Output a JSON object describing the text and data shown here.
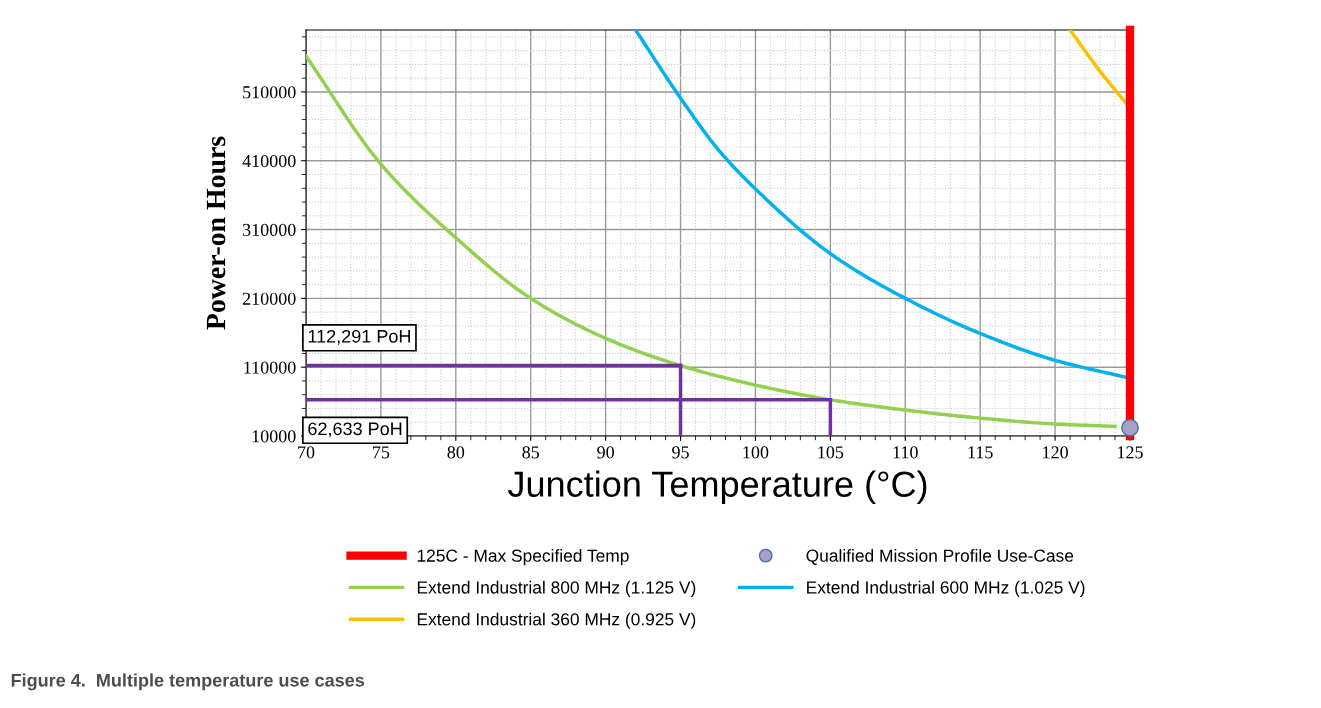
{
  "chart_data": {
    "type": "line",
    "xlabel": "Junction Temperature (°C)",
    "ylabel": "Power-on Hours",
    "xlim": [
      70,
      125
    ],
    "xticks": [
      70,
      75,
      80,
      85,
      90,
      95,
      100,
      105,
      110,
      115,
      120,
      125
    ],
    "ylim": [
      10000,
      600000
    ],
    "yticks": [
      10000,
      110000,
      210000,
      310000,
      410000,
      510000
    ],
    "grid": true,
    "legend": "bottom",
    "ref_lines": [
      {
        "axis": "x",
        "value": 125,
        "label": "125C - Max Specified Temp",
        "color": "#ff0000"
      }
    ],
    "series": [
      {
        "name": "Qualified Mission Profile Use-Case",
        "type": "scatter",
        "color": "#a9a0c8",
        "marker": "circle",
        "x": [
          125
        ],
        "values": [
          22000
        ]
      },
      {
        "name": "Extend Industrial 800 MHz (1.125 V)",
        "color": "#92d050",
        "x": [
          70,
          75,
          80,
          85,
          90,
          95,
          100,
          105,
          110,
          115,
          120,
          124
        ],
        "values": [
          562000,
          405000,
          298000,
          210000,
          152000,
          112291,
          84000,
          62633,
          47700,
          36000,
          27400,
          24000
        ]
      },
      {
        "name": "Extend Industrial 600 MHz (1.025 V)",
        "color": "#00b0f0",
        "x": [
          92,
          95,
          97.6,
          100,
          105,
          110,
          115,
          120,
          125
        ],
        "values": [
          600000,
          501000,
          424000,
          369000,
          275000,
          210000,
          159000,
          120000,
          94000
        ]
      },
      {
        "name": "Extend Industrial 360 MHz (0.925 V)",
        "color": "#ffc000",
        "x": [
          121,
          123,
          125
        ],
        "values": [
          600000,
          540000,
          487000
        ]
      }
    ],
    "annotations": [
      {
        "text": "112,291 PoH",
        "x": 95,
        "y": 112291
      },
      {
        "text": "62,633 PoH",
        "x": 105,
        "y": 62633
      },
      "Figure 4.  Multiple temperature use cases"
    ]
  }
}
